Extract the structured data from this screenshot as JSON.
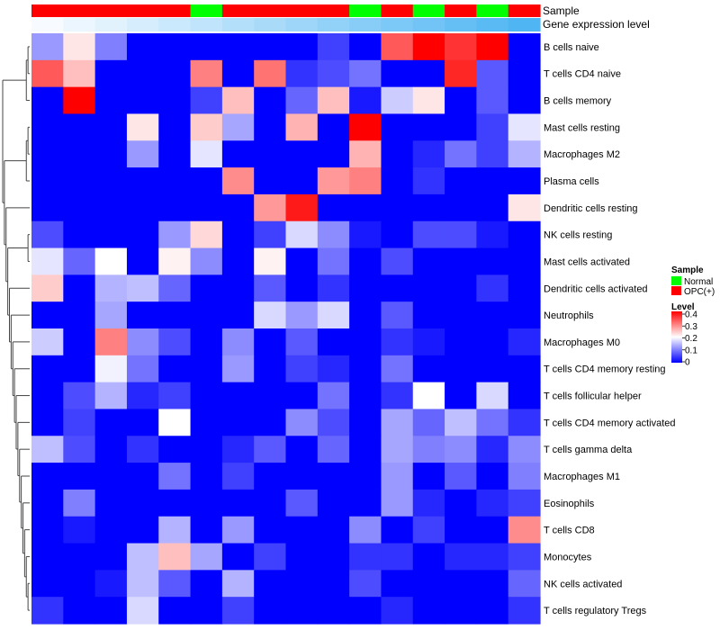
{
  "chart_data": {
    "type": "heatmap",
    "rows": [
      "B cells naive",
      "T cells CD4 naive",
      "B cells memory",
      "Mast cells resting",
      "Macrophages M2",
      "Plasma cells",
      "Dendritic cells resting",
      "NK cells resting",
      "Mast cells activated",
      "Dendritic cells activated",
      "Neutrophils",
      "Macrophages M0",
      "T cells CD4 memory resting",
      "T cells follicular helper",
      "T cells CD4 memory activated",
      "T cells gamma delta",
      "Macrophages M1",
      "Eosinophils",
      "T cells CD8",
      "Monocytes",
      "NK cells activated",
      "T cells regulatory  Tregs"
    ],
    "annotations": [
      {
        "name": "Sample",
        "values": [
          "OPC(+)",
          "OPC(+)",
          "OPC(+)",
          "OPC(+)",
          "OPC(+)",
          "Normal",
          "OPC(+)",
          "OPC(+)",
          "OPC(+)",
          "OPC(+)",
          "Normal",
          "OPC(+)",
          "Normal",
          "OPC(+)",
          "Normal",
          "OPC(+)"
        ]
      },
      {
        "name": "Gene expression level",
        "levels": [
          0.0,
          0.03,
          0.06,
          0.09,
          0.12,
          0.15,
          0.18,
          0.21,
          0.24,
          0.27,
          0.3,
          0.33,
          0.36,
          0.39,
          0.42,
          0.45
        ]
      }
    ],
    "values": [
      [
        0.12,
        0.22,
        0.1,
        0.0,
        0.0,
        0.0,
        0.0,
        0.0,
        0.0,
        0.05,
        0.0,
        0.33,
        0.4,
        0.36,
        0.4,
        0.0
      ],
      [
        0.33,
        0.25,
        0.0,
        0.0,
        0.0,
        0.3,
        0.0,
        0.31,
        0.04,
        0.06,
        0.09,
        0.0,
        0.0,
        0.37,
        0.07,
        0.0
      ],
      [
        0.0,
        0.4,
        0.0,
        0.0,
        0.0,
        0.05,
        0.25,
        0.0,
        0.08,
        0.25,
        0.02,
        0.16,
        0.22,
        0.0,
        0.07,
        0.0
      ],
      [
        0.0,
        0.0,
        0.0,
        0.22,
        0.0,
        0.24,
        0.13,
        0.0,
        0.26,
        0.0,
        0.4,
        0.0,
        0.0,
        0.0,
        0.05,
        0.18
      ],
      [
        0.0,
        0.0,
        0.0,
        0.12,
        0.0,
        0.18,
        0.0,
        0.0,
        0.0,
        0.0,
        0.26,
        0.0,
        0.03,
        0.09,
        0.05,
        0.14
      ],
      [
        0.0,
        0.0,
        0.0,
        0.0,
        0.0,
        0.0,
        0.29,
        0.0,
        0.0,
        0.28,
        0.3,
        0.0,
        0.04,
        0.0,
        0.0,
        0.0
      ],
      [
        0.0,
        0.0,
        0.0,
        0.0,
        0.0,
        0.0,
        0.0,
        0.28,
        0.38,
        0.0,
        0.0,
        0.0,
        0.0,
        0.0,
        0.0,
        0.22
      ],
      [
        0.06,
        0.0,
        0.0,
        0.0,
        0.12,
        0.23,
        0.0,
        0.05,
        0.17,
        0.11,
        0.02,
        0.0,
        0.06,
        0.06,
        0.02,
        0.0
      ],
      [
        0.18,
        0.08,
        0.2,
        0.0,
        0.21,
        0.11,
        0.0,
        0.21,
        0.0,
        0.09,
        0.0,
        0.06,
        0.0,
        0.0,
        0.0,
        0.0
      ],
      [
        0.24,
        0.0,
        0.14,
        0.15,
        0.08,
        0.0,
        0.0,
        0.07,
        0.0,
        0.04,
        0.0,
        0.0,
        0.0,
        0.0,
        0.04,
        0.0
      ],
      [
        0.0,
        0.0,
        0.13,
        0.0,
        0.0,
        0.0,
        0.0,
        0.17,
        0.12,
        0.17,
        0.0,
        0.07,
        0.0,
        0.0,
        0.0,
        0.0
      ],
      [
        0.16,
        0.0,
        0.3,
        0.11,
        0.06,
        0.0,
        0.11,
        0.0,
        0.07,
        0.0,
        0.0,
        0.04,
        0.02,
        0.0,
        0.0,
        0.03
      ],
      [
        0.0,
        0.0,
        0.19,
        0.09,
        0.0,
        0.0,
        0.12,
        0.0,
        0.05,
        0.03,
        0.0,
        0.09,
        0.0,
        0.0,
        0.0,
        0.0
      ],
      [
        0.0,
        0.06,
        0.14,
        0.03,
        0.05,
        0.0,
        0.0,
        0.0,
        0.0,
        0.09,
        0.0,
        0.04,
        0.2,
        0.0,
        0.17,
        0.0
      ],
      [
        0.0,
        0.05,
        0.0,
        0.0,
        0.2,
        0.0,
        0.0,
        0.0,
        0.11,
        0.06,
        0.0,
        0.13,
        0.08,
        0.15,
        0.09,
        0.04
      ],
      [
        0.15,
        0.06,
        0.0,
        0.04,
        0.0,
        0.0,
        0.03,
        0.07,
        0.0,
        0.08,
        0.0,
        0.13,
        0.1,
        0.11,
        0.03,
        0.11
      ],
      [
        0.0,
        0.0,
        0.0,
        0.0,
        0.09,
        0.0,
        0.05,
        0.0,
        0.0,
        0.0,
        0.0,
        0.12,
        0.0,
        0.07,
        0.0,
        0.1
      ],
      [
        0.0,
        0.1,
        0.0,
        0.0,
        0.0,
        0.0,
        0.0,
        0.0,
        0.07,
        0.0,
        0.0,
        0.12,
        0.03,
        0.0,
        0.03,
        0.05
      ],
      [
        0.0,
        0.02,
        0.0,
        0.0,
        0.14,
        0.0,
        0.12,
        0.0,
        0.0,
        0.0,
        0.11,
        0.0,
        0.05,
        0.0,
        0.0,
        0.29
      ],
      [
        0.0,
        0.0,
        0.0,
        0.15,
        0.25,
        0.13,
        0.0,
        0.05,
        0.0,
        0.0,
        0.04,
        0.04,
        0.0,
        0.03,
        0.03,
        0.05
      ],
      [
        0.0,
        0.0,
        0.02,
        0.15,
        0.07,
        0.0,
        0.14,
        0.0,
        0.0,
        0.0,
        0.06,
        0.0,
        0.0,
        0.0,
        0.0,
        0.08
      ],
      [
        0.04,
        0.0,
        0.0,
        0.17,
        0.0,
        0.0,
        0.05,
        0.0,
        0.0,
        0.0,
        0.0,
        0.03,
        0.0,
        0.0,
        0.0,
        0.04
      ]
    ],
    "color_scale": {
      "min": 0,
      "max": 0.4,
      "stops": [
        "#0000FF",
        "#FFFFFF",
        "#FF0000"
      ],
      "ticks": [
        "0.4",
        "0.3",
        "0.2",
        "0.1",
        "0"
      ]
    },
    "legend": {
      "placement": "right",
      "sample": {
        "title": "Sample",
        "items": [
          {
            "label": "Normal",
            "color": "#00FF00"
          },
          {
            "label": "OPC(+)",
            "color": "#FF0000"
          }
        ]
      },
      "level": {
        "title": "Level"
      }
    },
    "annotation_colors": {
      "Normal": "#00FF00",
      "OPC(+)": "#FF0000",
      "gradient": [
        "#F7FBFF",
        "#4FB6F3"
      ]
    },
    "dendrogram": {
      "side": "left",
      "tree": [
        [
          [
            0,
            1
          ],
          2
        ],
        [
          [
            [
              3,
              4
            ],
            5
          ],
          [
            6,
            [
              [
                7,
                8
              ],
              [
                9,
                [
                  10,
                  [
                    11,
                    [
                      12,
                      [
                        13,
                        [
                          14,
                          [
                            15,
                            [
                              16,
                              [
                                17,
                                [
                                  18,
                                  [
                                    19,
                                    [
                                      20,
                                      21
                                    ]
                                  ]
                                ]
                              ]
                            ]
                          ]
                        ]
                      ]
                    ]
                  ]
                ]
              ]
            ]
          ]
        ]
      ]
    }
  }
}
